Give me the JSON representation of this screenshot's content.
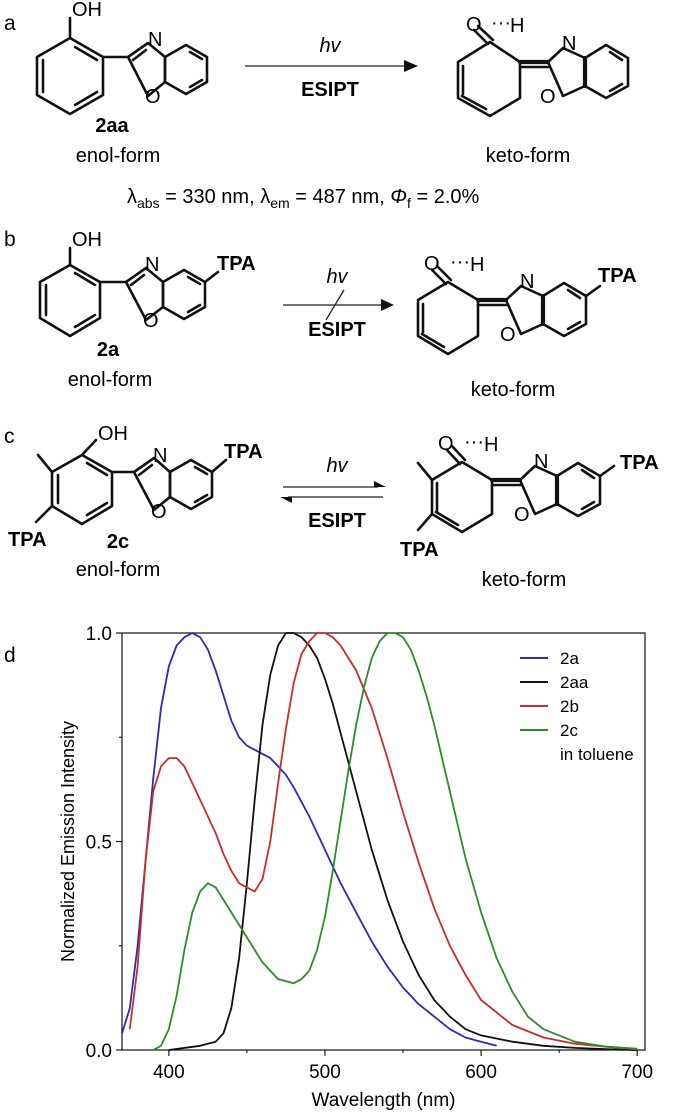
{
  "panels": {
    "a": {
      "letter": "a",
      "compound": "2aa",
      "hv": "hv",
      "arrow_label": "ESIPT",
      "left_form": "enol-form",
      "right_form": "keto-form",
      "props": {
        "abs_sym": "λ",
        "abs_sub": "abs",
        "abs_val": " = 330 nm, ",
        "em_sym": "λ",
        "em_sub": "em",
        "em_val": " = 487 nm,  ",
        "phi_sym": "Φ",
        "phi_sub": "f",
        "phi_val": " = 2.0%"
      }
    },
    "b": {
      "letter": "b",
      "compound": "2a",
      "hv": "hv",
      "arrow_label": "ESIPT",
      "left_form": "enol-form",
      "right_form": "keto-form",
      "substituent": "TPA"
    },
    "c": {
      "letter": "c",
      "compound": "2c",
      "hv": "hv",
      "arrow_label": "ESIPT",
      "left_form": "enol-form",
      "right_form": "keto-form",
      "substituent": "TPA"
    },
    "d": {
      "letter": "d"
    }
  },
  "atoms": {
    "OH": "OH",
    "O": "O",
    "N": "N",
    "H": "H"
  },
  "chart_data": {
    "type": "line",
    "xlabel": "Wavelength (nm)",
    "ylabel": "Normalized Emission Intensity",
    "xlim": [
      370,
      705
    ],
    "ylim": [
      0,
      1.0
    ],
    "xticks": [
      400,
      500,
      600,
      700
    ],
    "yticks": [
      "0.0",
      "0.5",
      "1.0"
    ],
    "ytick_values": [
      0,
      0.5,
      1.0
    ],
    "legend_position": "top-right",
    "legend_note": "in toluene",
    "series": [
      {
        "name": "2a",
        "color": "#2b2bb8",
        "x": [
          370,
          375,
          380,
          385,
          390,
          395,
          400,
          405,
          410,
          415,
          420,
          425,
          430,
          435,
          440,
          445,
          450,
          455,
          460,
          465,
          470,
          475,
          480,
          490,
          500,
          510,
          520,
          530,
          540,
          550,
          560,
          570,
          580,
          590,
          600,
          610
        ],
        "y": [
          0.04,
          0.1,
          0.25,
          0.45,
          0.65,
          0.82,
          0.92,
          0.97,
          0.99,
          1.0,
          0.99,
          0.96,
          0.91,
          0.85,
          0.79,
          0.75,
          0.73,
          0.72,
          0.71,
          0.7,
          0.68,
          0.66,
          0.63,
          0.56,
          0.48,
          0.4,
          0.33,
          0.26,
          0.2,
          0.15,
          0.11,
          0.08,
          0.05,
          0.03,
          0.02,
          0.01
        ]
      },
      {
        "name": "2aa",
        "color": "#111111",
        "x": [
          400,
          420,
          430,
          435,
          440,
          445,
          450,
          455,
          460,
          465,
          470,
          475,
          480,
          485,
          490,
          495,
          500,
          505,
          510,
          520,
          530,
          540,
          550,
          560,
          570,
          580,
          590,
          600,
          620,
          640,
          660,
          680,
          700
        ],
        "y": [
          0.0,
          0.01,
          0.02,
          0.04,
          0.1,
          0.22,
          0.4,
          0.6,
          0.78,
          0.9,
          0.97,
          1.0,
          1.0,
          0.99,
          0.97,
          0.94,
          0.89,
          0.83,
          0.76,
          0.62,
          0.48,
          0.36,
          0.26,
          0.18,
          0.12,
          0.08,
          0.05,
          0.035,
          0.02,
          0.01,
          0.005,
          0.002,
          0.0
        ]
      },
      {
        "name": "2b",
        "color": "#cc2b2b",
        "x": [
          375,
          380,
          385,
          390,
          395,
          400,
          405,
          410,
          415,
          420,
          425,
          430,
          435,
          440,
          445,
          450,
          455,
          460,
          465,
          470,
          475,
          480,
          485,
          490,
          495,
          500,
          505,
          510,
          520,
          530,
          540,
          550,
          560,
          570,
          580,
          590,
          600,
          620,
          640,
          660,
          680,
          700
        ],
        "y": [
          0.05,
          0.2,
          0.45,
          0.62,
          0.68,
          0.7,
          0.7,
          0.68,
          0.64,
          0.6,
          0.56,
          0.52,
          0.47,
          0.43,
          0.4,
          0.39,
          0.38,
          0.41,
          0.5,
          0.64,
          0.77,
          0.88,
          0.95,
          0.98,
          1.0,
          1.0,
          0.99,
          0.97,
          0.91,
          0.82,
          0.7,
          0.57,
          0.45,
          0.34,
          0.25,
          0.18,
          0.12,
          0.06,
          0.03,
          0.015,
          0.008,
          0.003
        ]
      },
      {
        "name": "2c",
        "color": "#2c8c2c",
        "x": [
          390,
          395,
          400,
          405,
          410,
          415,
          420,
          425,
          430,
          435,
          440,
          450,
          460,
          470,
          480,
          485,
          490,
          495,
          500,
          505,
          510,
          515,
          520,
          525,
          530,
          535,
          540,
          545,
          550,
          555,
          560,
          565,
          570,
          580,
          590,
          600,
          610,
          620,
          630,
          640,
          660,
          680,
          700
        ],
        "y": [
          0.0,
          0.01,
          0.05,
          0.13,
          0.24,
          0.33,
          0.38,
          0.4,
          0.39,
          0.36,
          0.33,
          0.27,
          0.21,
          0.17,
          0.16,
          0.17,
          0.19,
          0.24,
          0.32,
          0.43,
          0.55,
          0.67,
          0.78,
          0.87,
          0.94,
          0.98,
          1.0,
          1.0,
          0.99,
          0.96,
          0.91,
          0.85,
          0.78,
          0.62,
          0.46,
          0.33,
          0.22,
          0.14,
          0.08,
          0.05,
          0.02,
          0.008,
          0.002
        ]
      }
    ]
  }
}
